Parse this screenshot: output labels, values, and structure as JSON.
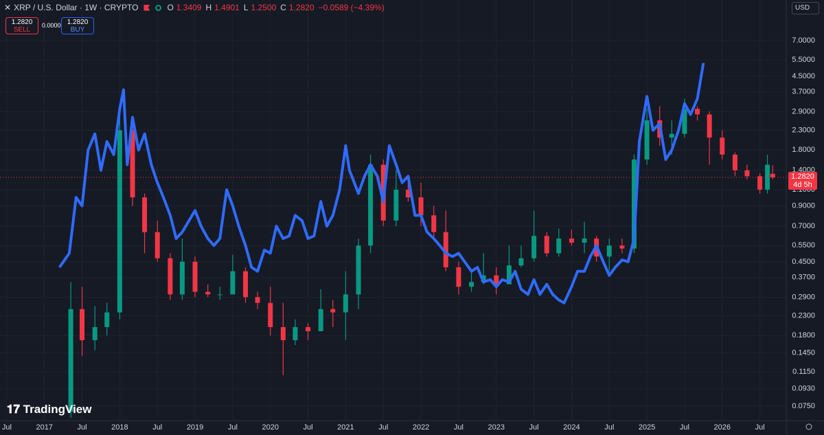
{
  "chart_data": {
    "type": "candlestick",
    "title": "XRP / U.S. Dollar · 1W · CRYPTO",
    "ohlc": [
      {
        "key": "O",
        "value": "1.3409"
      },
      {
        "key": "H",
        "value": "1.4901"
      },
      {
        "key": "L",
        "value": "1.2500"
      },
      {
        "key": "C",
        "value": "1.2820"
      }
    ],
    "change": "−0.0589 (−4.39%)",
    "sell": {
      "price": "1.2820",
      "label": "SELL"
    },
    "spread": "0.0000",
    "buy": {
      "price": "1.2820",
      "label": "BUY"
    },
    "currency": "USD",
    "brand": "TradingView",
    "last_price": {
      "value": 1.282,
      "label": "1.2820",
      "countdown": "4d 5h",
      "color": "#f23645"
    },
    "log_scale": true,
    "grid": true,
    "xlim": [
      2016.41,
      2026.85
    ],
    "ylim": [
      0.0627,
      11.58
    ],
    "xticks": [
      {
        "value": 2016.5,
        "label": "Jul"
      },
      2017,
      {
        "value": 2017.5,
        "label": "Jul"
      },
      2018,
      {
        "value": 2018.5,
        "label": "Jul"
      },
      2019,
      {
        "value": 2019.5,
        "label": "Jul"
      },
      2020,
      {
        "value": 2020.5,
        "label": "Jul"
      },
      2021,
      {
        "value": 2021.5,
        "label": "Jul"
      },
      2022,
      {
        "value": 2022.5,
        "label": "Jul"
      },
      2023,
      {
        "value": 2023.5,
        "label": "Jul"
      },
      2024,
      {
        "value": 2024.5,
        "label": "Jul"
      },
      2025,
      {
        "value": 2025.5,
        "label": "Jul"
      },
      2026,
      {
        "value": 2026.5,
        "label": "Jul"
      }
    ],
    "yticks": [
      {
        "value": 7,
        "label": "7.0000"
      },
      {
        "value": 5.5,
        "label": "5.5000"
      },
      {
        "value": 4.5,
        "label": "4.5000"
      },
      {
        "value": 3.7,
        "label": "3.7000"
      },
      {
        "value": 2.9,
        "label": "2.9000"
      },
      {
        "value": 2.3,
        "label": "2.3000"
      },
      {
        "value": 1.8,
        "label": "1.8000"
      },
      {
        "value": 1.4,
        "label": "1.4000"
      },
      {
        "value": 1.1,
        "label": "1.1000"
      },
      {
        "value": 0.9,
        "label": "0.9000"
      },
      {
        "value": 0.7,
        "label": "0.7000"
      },
      {
        "value": 0.55,
        "label": "0.5500"
      },
      {
        "value": 0.45,
        "label": "0.4500"
      },
      {
        "value": 0.37,
        "label": "0.3700"
      },
      {
        "value": 0.29,
        "label": "0.2900"
      },
      {
        "value": 0.23,
        "label": "0.2300"
      },
      {
        "value": 0.18,
        "label": "0.1800"
      },
      {
        "value": 0.145,
        "label": "0.1450"
      },
      {
        "value": 0.115,
        "label": "0.1150"
      },
      {
        "value": 0.093,
        "label": "0.0930"
      },
      {
        "value": 0.075,
        "label": "0.0750"
      }
    ],
    "series": [
      {
        "type": "candlestick",
        "up_color": "#089981",
        "down_color": "#f23645",
        "x": [
          2017.35,
          2017.5,
          2017.67,
          2017.83,
          2018.0,
          2018.17,
          2018.33,
          2018.5,
          2018.67,
          2018.83,
          2019.0,
          2019.17,
          2019.33,
          2019.5,
          2019.67,
          2019.83,
          2020.0,
          2020.17,
          2020.33,
          2020.5,
          2020.67,
          2020.83,
          2021.0,
          2021.17,
          2021.33,
          2021.5,
          2021.67,
          2021.83,
          2022.0,
          2022.17,
          2022.33,
          2022.5,
          2022.67,
          2022.83,
          2023.0,
          2023.17,
          2023.33,
          2023.5,
          2023.67,
          2023.83,
          2024.0,
          2024.17,
          2024.33,
          2024.5,
          2024.67,
          2024.83,
          2025.0,
          2025.17,
          2025.33,
          2025.5,
          2025.67,
          2025.83,
          2026.0,
          2026.17,
          2026.33,
          2026.5,
          2026.6,
          2026.67
        ],
        "open": [
          0.07,
          0.25,
          0.17,
          0.2,
          0.24,
          2.3,
          1.0,
          0.65,
          0.47,
          0.3,
          0.45,
          0.31,
          0.3,
          0.3,
          0.4,
          0.29,
          0.27,
          0.2,
          0.17,
          0.2,
          0.19,
          0.25,
          0.24,
          0.3,
          0.55,
          1.5,
          0.75,
          1.1,
          1.0,
          0.8,
          0.65,
          0.42,
          0.33,
          0.35,
          0.38,
          0.34,
          0.43,
          0.47,
          0.62,
          0.5,
          0.6,
          0.57,
          0.6,
          0.48,
          0.55,
          0.53,
          1.6,
          2.6,
          2.1,
          2.2,
          3.0,
          2.8,
          2.1,
          1.7,
          1.4,
          1.3,
          1.1,
          1.3409
        ],
        "high": [
          0.35,
          0.33,
          0.26,
          0.27,
          2.8,
          2.7,
          1.05,
          0.75,
          0.5,
          0.6,
          0.48,
          0.34,
          0.33,
          0.49,
          0.42,
          0.31,
          0.33,
          0.27,
          0.22,
          0.21,
          0.32,
          0.28,
          0.4,
          0.6,
          1.7,
          1.6,
          1.4,
          1.3,
          1.2,
          0.9,
          0.85,
          0.45,
          0.4,
          0.5,
          0.42,
          0.55,
          0.55,
          0.85,
          0.65,
          0.68,
          0.67,
          0.74,
          0.62,
          0.6,
          0.6,
          1.7,
          3.0,
          3.1,
          2.6,
          3.4,
          3.1,
          2.9,
          2.3,
          1.75,
          1.5,
          1.35,
          1.7,
          1.4901
        ],
        "low": [
          0.065,
          0.14,
          0.15,
          0.18,
          0.22,
          0.9,
          0.5,
          0.45,
          0.28,
          0.28,
          0.29,
          0.29,
          0.28,
          0.3,
          0.27,
          0.25,
          0.18,
          0.11,
          0.16,
          0.17,
          0.19,
          0.2,
          0.17,
          0.25,
          0.5,
          0.7,
          0.7,
          0.95,
          0.7,
          0.6,
          0.4,
          0.3,
          0.31,
          0.34,
          0.3,
          0.35,
          0.42,
          0.45,
          0.48,
          0.48,
          0.55,
          0.5,
          0.45,
          0.4,
          0.5,
          0.5,
          1.5,
          1.9,
          1.7,
          2.1,
          2.6,
          1.5,
          1.6,
          1.3,
          1.25,
          1.05,
          1.05,
          1.25
        ],
        "close": [
          0.25,
          0.17,
          0.2,
          0.24,
          2.3,
          1.0,
          0.65,
          0.47,
          0.3,
          0.45,
          0.31,
          0.3,
          0.3,
          0.4,
          0.29,
          0.27,
          0.2,
          0.17,
          0.2,
          0.19,
          0.25,
          0.24,
          0.3,
          0.55,
          1.5,
          0.75,
          1.1,
          1.0,
          0.8,
          0.65,
          0.42,
          0.33,
          0.35,
          0.38,
          0.34,
          0.43,
          0.47,
          0.62,
          0.5,
          0.6,
          0.57,
          0.6,
          0.48,
          0.55,
          0.53,
          1.6,
          2.6,
          2.1,
          2.2,
          3.0,
          2.8,
          2.1,
          1.7,
          1.4,
          1.3,
          1.1,
          1.5,
          1.282
        ]
      },
      {
        "type": "line",
        "color": "#2f6bff",
        "x": [
          2017.2,
          2017.33,
          2017.42,
          2017.5,
          2017.58,
          2017.67,
          2017.75,
          2017.83,
          2017.92,
          2018.0,
          2018.05,
          2018.1,
          2018.17,
          2018.25,
          2018.33,
          2018.42,
          2018.5,
          2018.58,
          2018.67,
          2018.75,
          2018.83,
          2018.92,
          2019.0,
          2019.08,
          2019.17,
          2019.25,
          2019.33,
          2019.42,
          2019.5,
          2019.58,
          2019.67,
          2019.75,
          2019.83,
          2019.92,
          2020.0,
          2020.08,
          2020.17,
          2020.25,
          2020.33,
          2020.42,
          2020.5,
          2020.58,
          2020.67,
          2020.75,
          2020.83,
          2020.92,
          2021.0,
          2021.05,
          2021.17,
          2021.25,
          2021.33,
          2021.42,
          2021.5,
          2021.58,
          2021.67,
          2021.75,
          2021.83,
          2021.92,
          2022.0,
          2022.08,
          2022.17,
          2022.25,
          2022.33,
          2022.42,
          2022.5,
          2022.58,
          2022.67,
          2022.75,
          2022.83,
          2022.92,
          2023.0,
          2023.08,
          2023.17,
          2023.25,
          2023.33,
          2023.42,
          2023.5,
          2023.58,
          2023.67,
          2023.75,
          2023.83,
          2023.9,
          2024.0,
          2024.08,
          2024.17,
          2024.25,
          2024.33,
          2024.42,
          2024.5,
          2024.58,
          2024.67,
          2024.75,
          2024.83,
          2024.9,
          2025.0,
          2025.08,
          2025.17,
          2025.25,
          2025.33,
          2025.42,
          2025.5,
          2025.58,
          2025.67,
          2025.75
        ],
        "values": [
          0.42,
          0.5,
          1.0,
          0.9,
          1.8,
          2.2,
          1.4,
          2.0,
          1.7,
          3.0,
          3.8,
          1.5,
          2.7,
          1.8,
          2.2,
          1.5,
          1.2,
          1.0,
          0.8,
          0.6,
          0.65,
          0.75,
          0.85,
          0.7,
          0.6,
          0.55,
          0.6,
          1.1,
          0.9,
          0.7,
          0.55,
          0.42,
          0.4,
          0.52,
          0.5,
          0.7,
          0.6,
          0.62,
          0.8,
          0.75,
          0.6,
          0.62,
          0.95,
          0.7,
          0.8,
          1.1,
          1.9,
          1.4,
          1.05,
          1.3,
          1.5,
          1.3,
          0.95,
          1.9,
          1.5,
          1.2,
          1.3,
          0.8,
          0.8,
          0.65,
          0.6,
          0.55,
          0.5,
          0.48,
          0.5,
          0.45,
          0.4,
          0.42,
          0.35,
          0.36,
          0.33,
          0.36,
          0.35,
          0.4,
          0.32,
          0.3,
          0.36,
          0.3,
          0.34,
          0.3,
          0.28,
          0.27,
          0.33,
          0.4,
          0.4,
          0.48,
          0.55,
          0.45,
          0.38,
          0.42,
          0.46,
          0.45,
          0.6,
          2.0,
          3.5,
          2.3,
          2.5,
          1.6,
          1.8,
          2.3,
          3.2,
          2.8,
          3.4,
          5.3
        ]
      }
    ]
  }
}
